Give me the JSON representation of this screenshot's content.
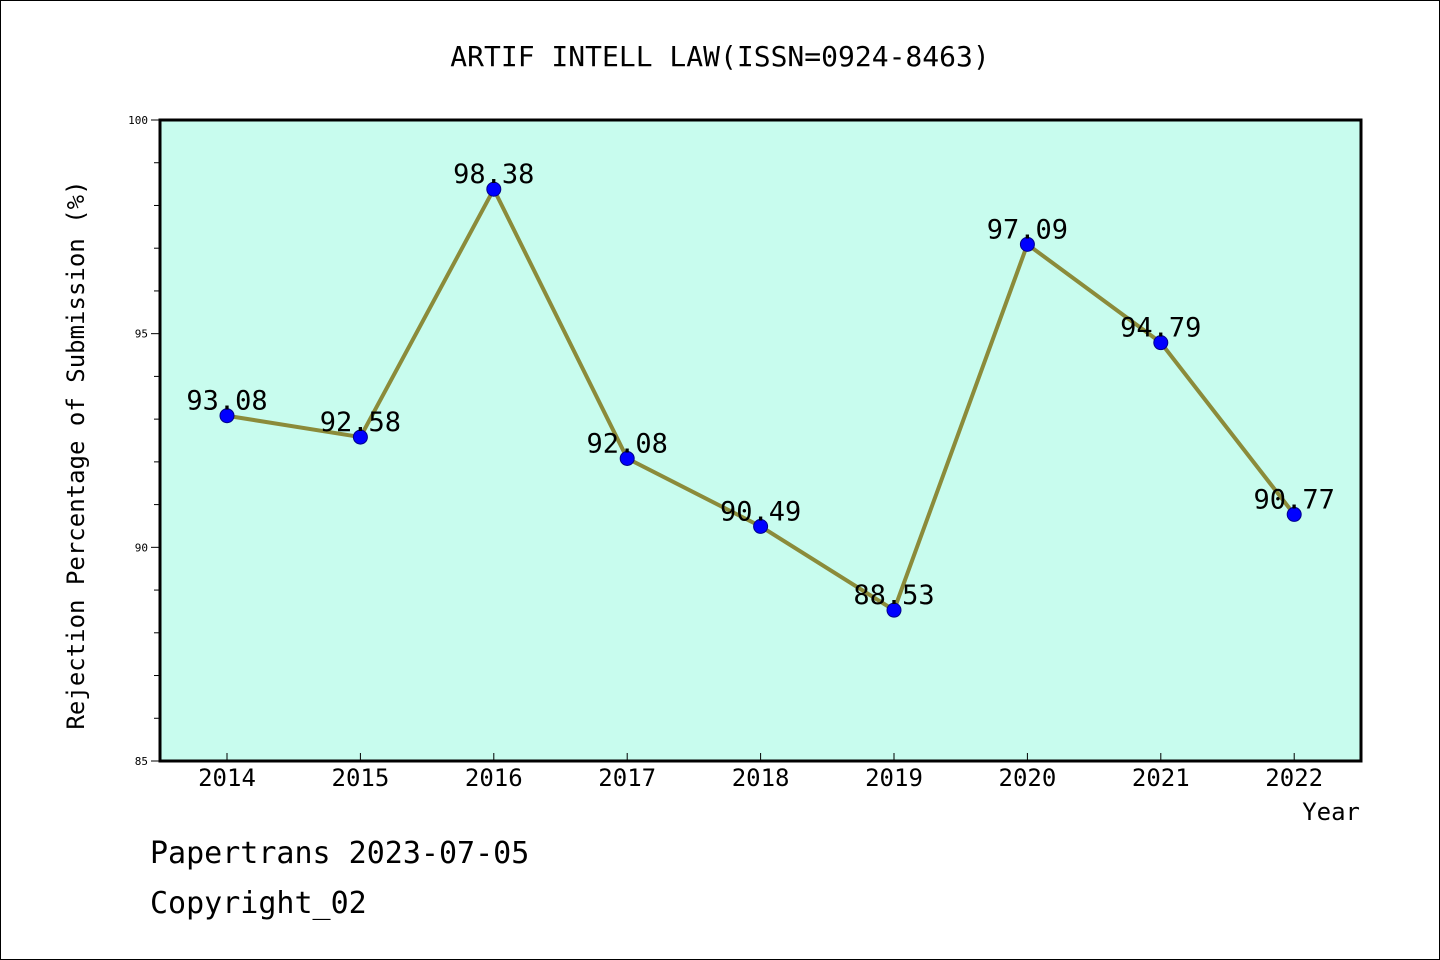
{
  "chart_data": {
    "type": "line",
    "title": "ARTIF INTELL LAW(ISSN=0924-8463)",
    "xlabel": "Year",
    "ylabel": "Rejection Percentage of Submission (%)",
    "categories": [
      "2014",
      "2015",
      "2016",
      "2017",
      "2018",
      "2019",
      "2020",
      "2021",
      "2022"
    ],
    "values": [
      93.08,
      92.58,
      98.38,
      92.08,
      90.49,
      88.53,
      97.09,
      94.79,
      90.77
    ],
    "data_labels": [
      "93.08",
      "92.58",
      "98.38",
      "92.08",
      "90.49",
      "88.53",
      "97.09",
      "94.79",
      "90.77"
    ],
    "ylim": [
      85,
      100
    ],
    "yticks": [
      "85",
      "90",
      "95",
      "100"
    ],
    "line_color": "#8b8b3a",
    "marker_color": "#0000ff",
    "plot_background": "#c8fcee",
    "grid": false,
    "legend": "none"
  },
  "footer": {
    "line1": "Papertrans 2023-07-05",
    "line2": "Copyright_02"
  }
}
